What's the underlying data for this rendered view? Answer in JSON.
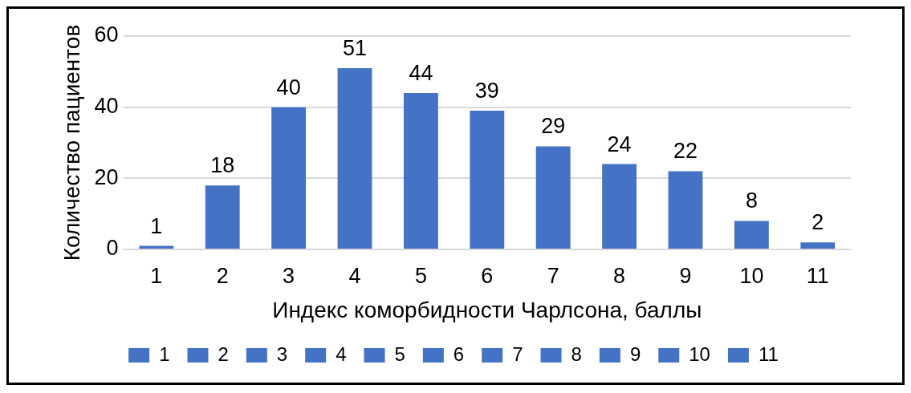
{
  "chart_data": {
    "type": "bar",
    "categories": [
      "1",
      "2",
      "3",
      "4",
      "5",
      "6",
      "7",
      "8",
      "9",
      "10",
      "11"
    ],
    "series": [
      {
        "name": "1",
        "color": "#4472c4",
        "values": [
          1,
          null,
          null,
          null,
          null,
          null,
          null,
          null,
          null,
          null,
          null
        ]
      },
      {
        "name": "2",
        "color": "#4472c4",
        "values": [
          null,
          18,
          null,
          null,
          null,
          null,
          null,
          null,
          null,
          null,
          null
        ]
      },
      {
        "name": "3",
        "color": "#4472c4",
        "values": [
          null,
          null,
          40,
          null,
          null,
          null,
          null,
          null,
          null,
          null,
          null
        ]
      },
      {
        "name": "4",
        "color": "#4472c4",
        "values": [
          null,
          null,
          null,
          51,
          null,
          null,
          null,
          null,
          null,
          null,
          null
        ]
      },
      {
        "name": "5",
        "color": "#4472c4",
        "values": [
          null,
          null,
          null,
          null,
          44,
          null,
          null,
          null,
          null,
          null,
          null
        ]
      },
      {
        "name": "6",
        "color": "#4472c4",
        "values": [
          null,
          null,
          null,
          null,
          null,
          39,
          null,
          null,
          null,
          null,
          null
        ]
      },
      {
        "name": "7",
        "color": "#4472c4",
        "values": [
          null,
          null,
          null,
          null,
          null,
          null,
          29,
          null,
          null,
          null,
          null
        ]
      },
      {
        "name": "8",
        "color": "#4472c4",
        "values": [
          null,
          null,
          null,
          null,
          null,
          null,
          null,
          24,
          null,
          null,
          null
        ]
      },
      {
        "name": "9",
        "color": "#4472c4",
        "values": [
          null,
          null,
          null,
          null,
          null,
          null,
          null,
          null,
          22,
          null,
          null
        ]
      },
      {
        "name": "10",
        "color": "#4472c4",
        "values": [
          null,
          null,
          null,
          null,
          null,
          null,
          null,
          null,
          null,
          8,
          null
        ]
      },
      {
        "name": "11",
        "color": "#4472c4",
        "values": [
          null,
          null,
          null,
          null,
          null,
          null,
          null,
          null,
          null,
          null,
          2
        ]
      }
    ],
    "xlabel": "Индекс коморбидности Чарлсона, баллы",
    "ylabel": "Количество пациентов",
    "ylim": [
      0,
      60
    ],
    "yticks": [
      0,
      20,
      40,
      60
    ],
    "grid": "y",
    "legend": "bottom",
    "data_labels": true
  }
}
